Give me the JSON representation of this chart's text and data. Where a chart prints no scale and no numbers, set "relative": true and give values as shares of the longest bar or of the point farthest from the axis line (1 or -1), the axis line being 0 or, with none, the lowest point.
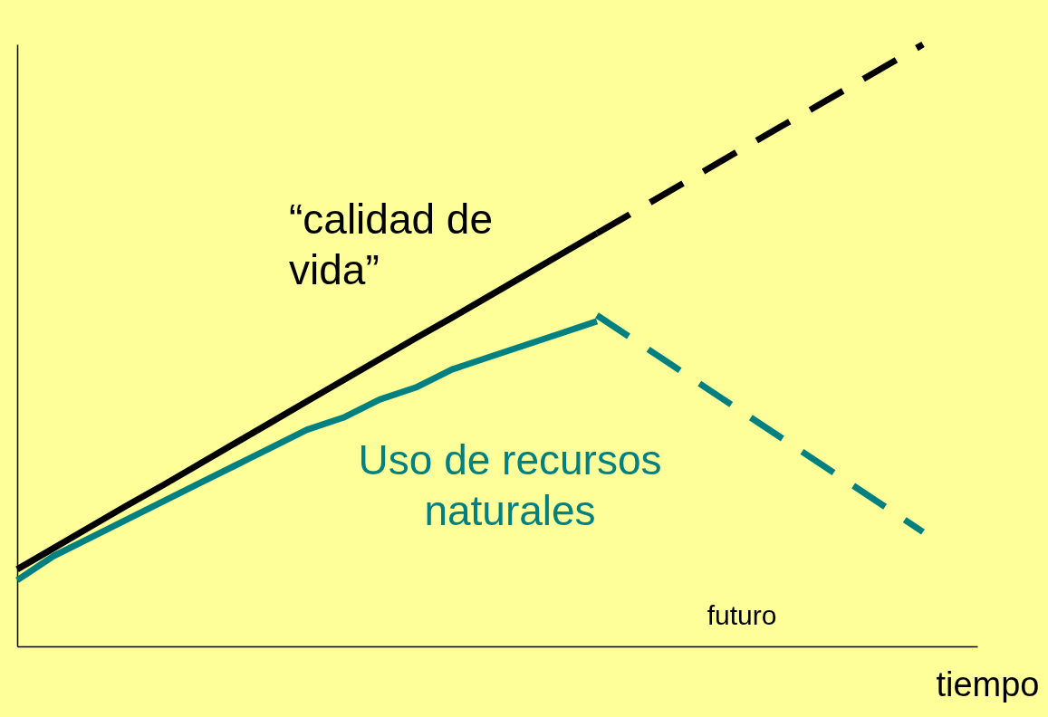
{
  "chart_data": {
    "type": "line",
    "relative": true,
    "xlabel": "tiempo",
    "categories": [
      null,
      null,
      null,
      null,
      null,
      null,
      null,
      null,
      null,
      null,
      null,
      null,
      null,
      null,
      null,
      null,
      null,
      null,
      null,
      null,
      null,
      null,
      null,
      null,
      null,
      null
    ],
    "series": [
      {
        "name": "“calidad de vida”",
        "color": "#000000",
        "line_style": "solid",
        "values": [
          0.128,
          0.163,
          0.198,
          0.233,
          0.267,
          0.302,
          0.337,
          0.372,
          0.407,
          0.442,
          0.477,
          0.512,
          0.546,
          0.581,
          0.616,
          0.651,
          0.686,
          null,
          null,
          null,
          null,
          null,
          null,
          null,
          null,
          null
        ]
      },
      {
        "color": "#000000",
        "line_style": "dashed",
        "values": [
          null,
          null,
          null,
          null,
          null,
          null,
          null,
          null,
          null,
          null,
          null,
          null,
          null,
          null,
          null,
          null,
          0.686,
          0.721,
          0.756,
          0.791,
          0.826,
          0.861,
          0.895,
          0.93,
          0.965,
          1.0
        ]
      },
      {
        "name": "Uso de recursos naturales",
        "color": "#008080",
        "line_style": "solid",
        "values": [
          0.11,
          0.15,
          0.18,
          0.21,
          0.24,
          0.27,
          0.3,
          0.33,
          0.36,
          0.38,
          0.41,
          0.43,
          0.46,
          0.48,
          0.5,
          0.52,
          0.54,
          null,
          null,
          null,
          null,
          null,
          null,
          null,
          null,
          null
        ]
      },
      {
        "color": "#008080",
        "line_style": "dashed",
        "values": [
          null,
          null,
          null,
          null,
          null,
          null,
          null,
          null,
          null,
          null,
          null,
          null,
          null,
          null,
          null,
          null,
          0.55,
          0.51,
          0.47,
          0.43,
          0.39,
          0.35,
          0.31,
          0.27,
          0.23,
          0.19
        ]
      }
    ],
    "annotations": [
      "futuro"
    ]
  }
}
